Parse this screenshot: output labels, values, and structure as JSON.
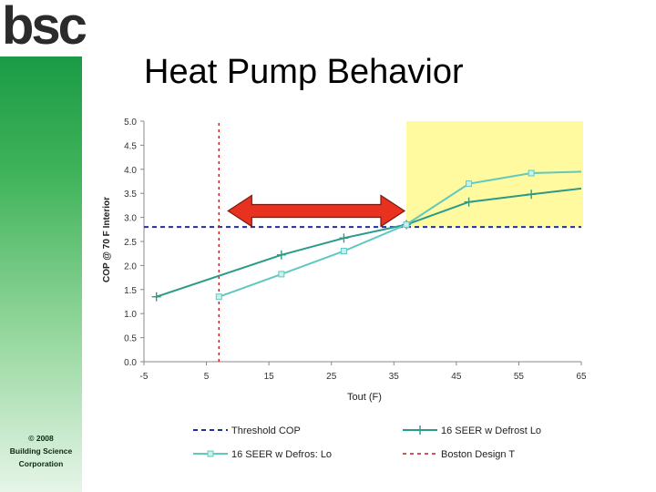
{
  "slide": {
    "title": "Heat Pump Behavior",
    "logo": "bsc",
    "copyright_lines": [
      "© 2008",
      "Building Science",
      "Corporation"
    ]
  },
  "colors": {
    "sidebar_green": "#0a8f3c",
    "highlight_zone": "#fffaa0",
    "arrow_fill": "#e8311f",
    "threshold_line": "#1f2fa0",
    "design_temp_line": "#c02020",
    "series_with_defrost": "#2a9a8a",
    "series_without_defrost": "#5fc9c0"
  },
  "chart_data": {
    "type": "line",
    "title": "",
    "xlabel": "Tout (F)",
    "ylabel": "COP @ 70 F Interior",
    "xlim": [
      -5,
      65
    ],
    "ylim": [
      0,
      5
    ],
    "xticks": [
      -5,
      5,
      15,
      25,
      35,
      45,
      55,
      65
    ],
    "yticks": [
      0,
      0.5,
      1.0,
      1.5,
      2.0,
      2.5,
      3.0,
      3.5,
      4.0,
      4.5,
      5.0
    ],
    "ytick_labels": [
      "0.0",
      "0.5",
      "1.0",
      "1.5",
      "2.0",
      "2.5",
      "3.0",
      "3.5",
      "4.0",
      "4.5",
      "5.0"
    ],
    "grid": false,
    "legend_position": "bottom",
    "highlight_region": {
      "x": [
        37,
        65
      ],
      "y": [
        2.8,
        5.0
      ]
    },
    "double_arrow": {
      "x": [
        7,
        37
      ],
      "y": 3.4
    },
    "series": [
      {
        "name": "Threshold COP",
        "style": "dashed",
        "x": [
          -5,
          65
        ],
        "y": [
          2.8,
          2.8
        ]
      },
      {
        "name": "16 SEER w Defrost Lo",
        "style": "solid-plus",
        "x": [
          -3,
          17,
          27,
          37,
          47,
          57,
          65
        ],
        "y": [
          1.35,
          2.22,
          2.57,
          2.85,
          3.32,
          3.48,
          3.6
        ]
      },
      {
        "name": "16 SEER w Defrost Lo",
        "style": "solid-square",
        "x": [
          7,
          17,
          27,
          37,
          47,
          57,
          65
        ],
        "y": [
          1.35,
          1.82,
          2.3,
          2.85,
          3.7,
          3.92,
          3.95
        ]
      },
      {
        "name": "Boston Design T",
        "style": "dotted-vertical",
        "x": [
          7,
          7
        ],
        "y": [
          0,
          5
        ]
      }
    ],
    "legend": [
      {
        "name": "Threshold COP",
        "series_index": 0
      },
      {
        "name": "16 SEER w Defrost Lo",
        "series_index": 1
      },
      {
        "name": "16 SEER w Defros: Lo",
        "series_index": 2
      },
      {
        "name": "Boston Design T",
        "series_index": 3
      }
    ]
  }
}
